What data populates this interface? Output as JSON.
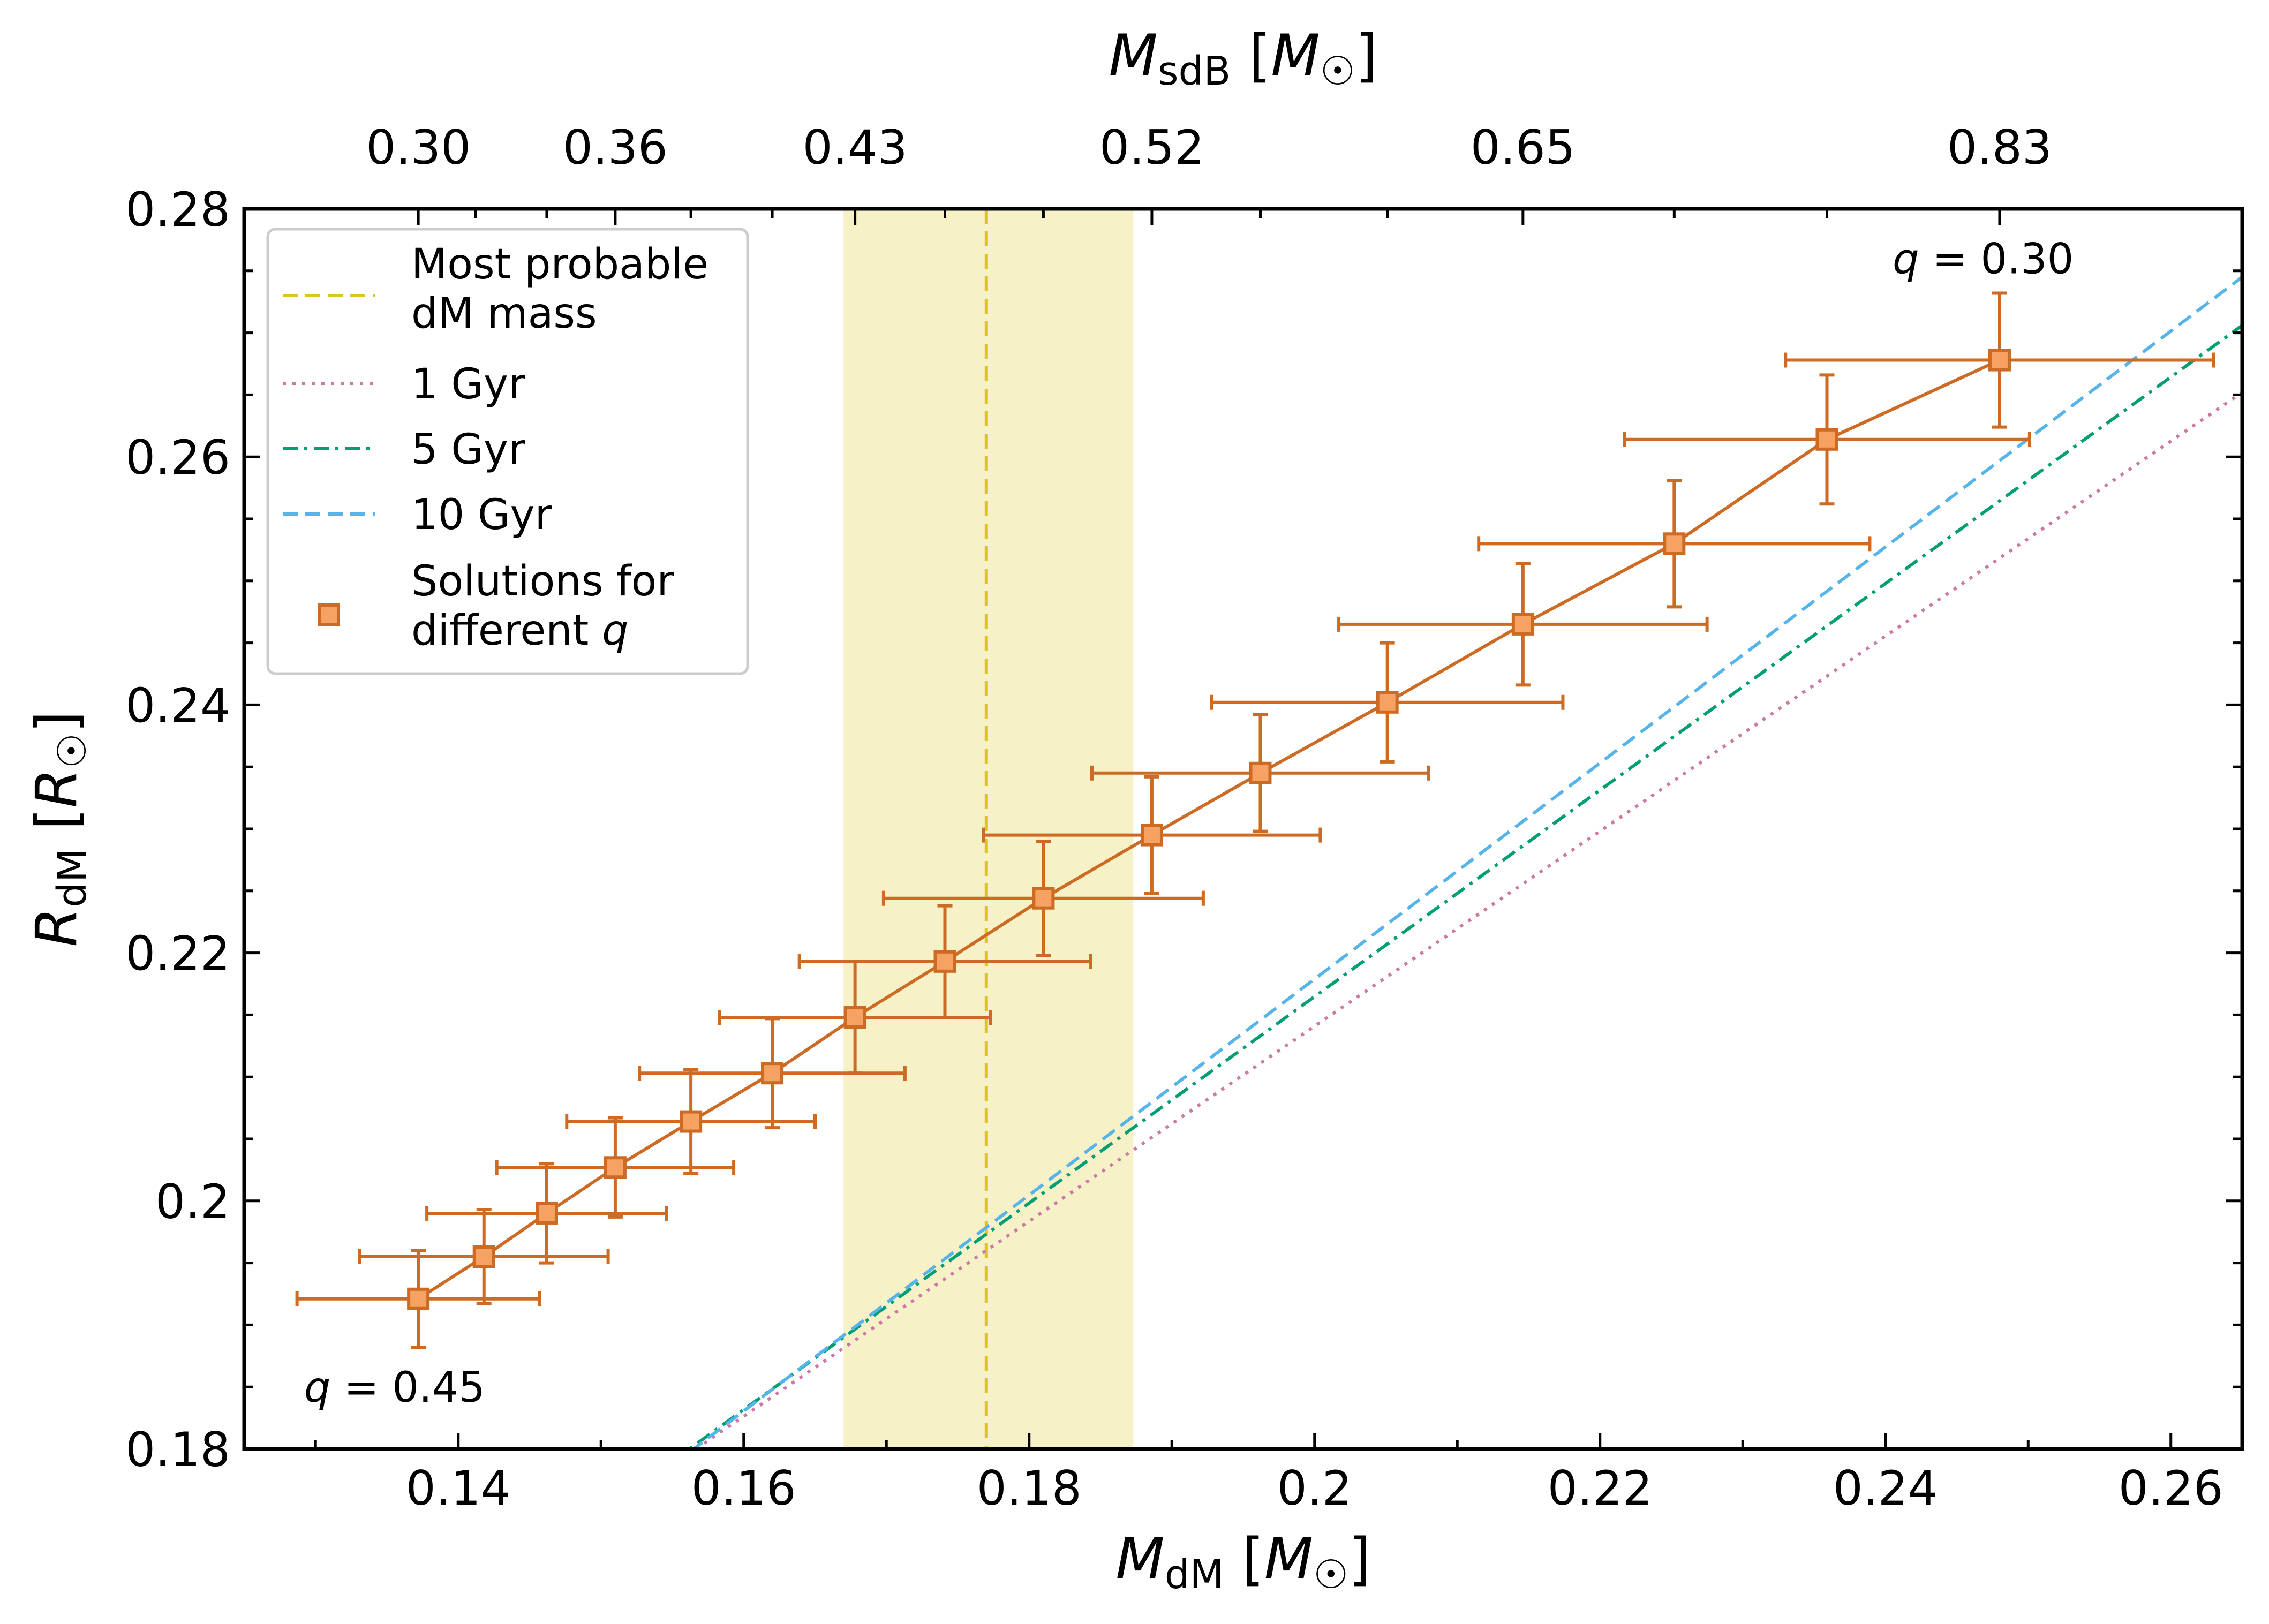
{
  "chart_data": {
    "type": "scatter",
    "xlabel": {
      "base": "M",
      "sub": "dM",
      "unit": "M",
      "unit_sub": "☉"
    },
    "ylabel": {
      "base": "R",
      "sub": "dM",
      "unit": "R",
      "unit_sub": "☉"
    },
    "top_xlabel": {
      "base": "M",
      "sub": "sdB",
      "unit": "M",
      "unit_sub": "☉"
    },
    "xlim": [
      0.125,
      0.265
    ],
    "ylim": [
      0.18,
      0.28
    ],
    "x_ticks": [
      0.14,
      0.16,
      0.18,
      0.2,
      0.22,
      0.24,
      0.26
    ],
    "x_tick_labels": [
      "0.14",
      "0.16",
      "0.18",
      "0.2",
      "0.22",
      "0.24",
      "0.26"
    ],
    "y_ticks": [
      0.18,
      0.2,
      0.22,
      0.24,
      0.26,
      0.28
    ],
    "y_tick_labels": [
      "0.18",
      "0.2",
      "0.22",
      "0.24",
      "0.26",
      "0.28"
    ],
    "top_ticks": [
      {
        "x": 0.1372,
        "label": "0.30"
      },
      {
        "x": 0.151,
        "label": "0.36"
      },
      {
        "x": 0.1678,
        "label": "0.43"
      },
      {
        "x": 0.1886,
        "label": "0.52"
      },
      {
        "x": 0.2146,
        "label": "0.65"
      },
      {
        "x": 0.248,
        "label": "0.83"
      }
    ],
    "top_minor_ticks": [
      0.1412,
      0.1462,
      0.1563,
      0.162,
      0.1741,
      0.181,
      0.1962,
      0.2051,
      0.2252,
      0.2359
    ],
    "band": {
      "x0": 0.167,
      "x1": 0.1873,
      "color": "#f7f1c8"
    },
    "most_probable_mass": 0.177,
    "series": [
      {
        "name": "Solutions for different q",
        "color": "#cd6a24",
        "marker_fill": "#f5a263",
        "x": [
          0.1372,
          0.1418,
          0.1462,
          0.151,
          0.1563,
          0.162,
          0.1678,
          0.1741,
          0.181,
          0.1886,
          0.1962,
          0.2051,
          0.2146,
          0.2252,
          0.2359,
          0.248
        ],
        "y": [
          0.1921,
          0.1955,
          0.199,
          0.2027,
          0.2064,
          0.2103,
          0.2148,
          0.2193,
          0.2244,
          0.2295,
          0.2345,
          0.2402,
          0.2465,
          0.253,
          0.2614,
          0.2678
        ],
        "x_err": [
          0.0085,
          0.0087,
          0.0084,
          0.0083,
          0.0087,
          0.0093,
          0.0095,
          0.0102,
          0.0112,
          0.0118,
          0.0118,
          0.0123,
          0.0129,
          0.0137,
          0.0142,
          0.015
        ],
        "y_err": [
          0.0039,
          0.0038,
          0.004,
          0.004,
          0.0042,
          0.0044,
          0.0045,
          0.0045,
          0.0046,
          0.0047,
          0.0047,
          0.0048,
          0.0049,
          0.0051,
          0.0052,
          0.0054
        ]
      },
      {
        "name": "1 Gyr",
        "color": "#cc79a7",
        "style": "dotted",
        "x": [
          0.155,
          0.265
        ],
        "y": [
          0.1787,
          0.2652
        ]
      },
      {
        "name": "5 Gyr",
        "color": "#009e73",
        "style": "dashdot",
        "x": [
          0.155,
          0.265
        ],
        "y": [
          0.179,
          0.2706
        ]
      },
      {
        "name": "10 Gyr",
        "color": "#56b4e9",
        "style": "dashed",
        "x": [
          0.155,
          0.265
        ],
        "y": [
          0.1787,
          0.2745
        ]
      }
    ],
    "legend": {
      "position": "top-left",
      "entries": [
        {
          "lines": [
            "Most probable",
            "dM mass"
          ],
          "color": "#dcc51e",
          "style": "dashed"
        },
        {
          "lines": [
            "1 Gyr"
          ],
          "color": "#cc79a7",
          "style": "dotted"
        },
        {
          "lines": [
            "5 Gyr"
          ],
          "color": "#009e73",
          "style": "dashdot"
        },
        {
          "lines": [
            "10 Gyr"
          ],
          "color": "#56b4e9",
          "style": "dashed"
        },
        {
          "lines": [
            "Solutions for",
            "different "
          ],
          "italic_tail": "q",
          "color": "#cd6a24",
          "style": "marker"
        }
      ]
    },
    "annotations": [
      {
        "q": "q",
        "text": " = 0.30",
        "x": 0.2405,
        "y": 0.2748
      },
      {
        "q": "q",
        "text": " = 0.45",
        "x": 0.1292,
        "y": 0.1838
      }
    ]
  }
}
